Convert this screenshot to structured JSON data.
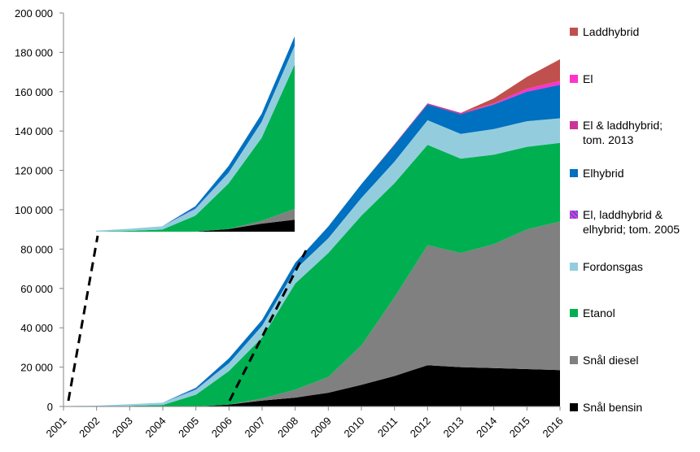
{
  "chart_data": {
    "type": "area",
    "stacked": true,
    "categories": [
      "2001",
      "2002",
      "2003",
      "2004",
      "2005",
      "2006",
      "2007",
      "2008",
      "2009",
      "2010",
      "2011",
      "2012",
      "2013",
      "2014",
      "2015",
      "2016"
    ],
    "ylim": [
      0,
      200000
    ],
    "yticks": [
      "0",
      "20 000",
      "40 000",
      "60 000",
      "80 000",
      "100 000",
      "120 000",
      "140 000",
      "160 000",
      "180 000",
      "200 000"
    ],
    "grid": false,
    "legend_position": "right",
    "series": [
      {
        "name": "Snål bensin",
        "color": "#000000",
        "values": [
          0,
          0,
          0,
          0,
          0,
          1000,
          3000,
          4500,
          7000,
          11000,
          15500,
          21000,
          20000,
          19500,
          19000,
          18500
        ]
      },
      {
        "name": "Snål diesel",
        "color": "#808080",
        "values": [
          0,
          0,
          0,
          0,
          0,
          0,
          1000,
          4000,
          8000,
          20000,
          40000,
          61000,
          58000,
          63000,
          71000,
          75500
        ]
      },
      {
        "name": "Etanol",
        "color": "#00b050",
        "values": [
          0,
          0,
          300,
          800,
          6000,
          17000,
          31000,
          54000,
          63000,
          66000,
          58000,
          51000,
          48000,
          45500,
          42000,
          40000
        ]
      },
      {
        "name": "Fordonsgas",
        "color": "#93cddd",
        "values": [
          200,
          400,
          800,
          1200,
          2500,
          4000,
          6000,
          7000,
          7500,
          9000,
          11000,
          12500,
          12500,
          13000,
          13000,
          12500
        ]
      },
      {
        "name": "El, laddhybrid & elhybrid; tom. 2005",
        "color": "#4455dd",
        "values": [
          0,
          0,
          0,
          0,
          300,
          0,
          0,
          0,
          0,
          0,
          0,
          0,
          0,
          0,
          0,
          0
        ]
      },
      {
        "name": "Elhybrid",
        "color": "#0070c0",
        "values": [
          0,
          0,
          0,
          0,
          700,
          2500,
          3000,
          3500,
          6000,
          7000,
          8500,
          8000,
          10000,
          12500,
          15000,
          17000
        ]
      },
      {
        "name": "El & laddhybrid; tom. 2013",
        "color": "#cc3399",
        "values": [
          0,
          0,
          0,
          0,
          0,
          0,
          0,
          0,
          0,
          0,
          300,
          600,
          700,
          0,
          0,
          0
        ]
      },
      {
        "name": "El",
        "color": "#ff33cc",
        "values": [
          0,
          0,
          0,
          0,
          0,
          0,
          0,
          0,
          0,
          0,
          0,
          0,
          0,
          600,
          1500,
          2000
        ]
      },
      {
        "name": "Laddhybrid",
        "color": "#c0504d",
        "values": [
          0,
          0,
          0,
          0,
          0,
          0,
          0,
          0,
          0,
          0,
          0,
          0,
          0,
          2500,
          6000,
          11000
        ]
      }
    ],
    "inset": {
      "description": "zoomed view of 2002–2008",
      "from_category": "2002",
      "to_category": "2008"
    }
  },
  "legend": {
    "items": [
      {
        "label": "Laddhybrid",
        "color": "#c0504d",
        "hatched": false
      },
      {
        "label": "El",
        "color": "#ff33cc",
        "hatched": false
      },
      {
        "label": "El & laddhybrid;\ntom. 2013",
        "color": "#cc3399",
        "hatched": false
      },
      {
        "label": "Elhybrid",
        "color": "#0070c0",
        "hatched": false
      },
      {
        "label": "El, laddhybrid &\nelhybrid; tom. 2005",
        "color": "#4455dd",
        "hatched": true
      },
      {
        "label": "Fordonsgas",
        "color": "#93cddd",
        "hatched": false
      },
      {
        "label": "Etanol",
        "color": "#00b050",
        "hatched": false
      },
      {
        "label": "Snål diesel",
        "color": "#808080",
        "hatched": false
      },
      {
        "label": "Snål bensin",
        "color": "#000000",
        "hatched": false
      }
    ]
  }
}
